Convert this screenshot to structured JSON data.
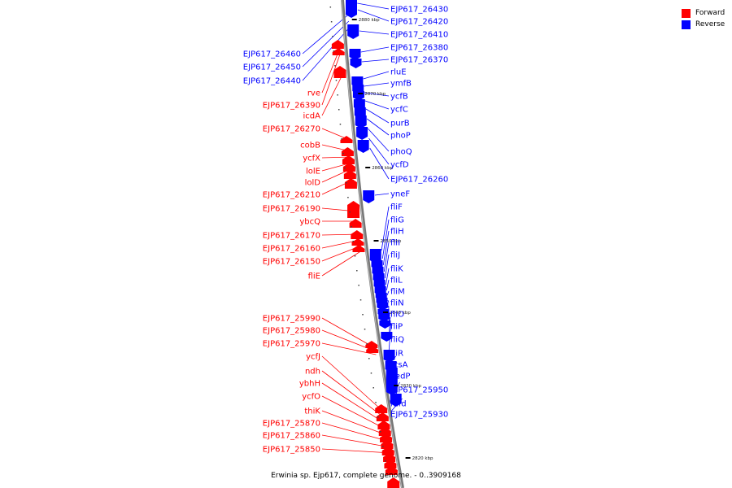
{
  "caption": "Erwinia sp. Ejp617, complete genome. - 0..3909168",
  "colors": {
    "forward": "#ff0000",
    "reverse": "#0000ff"
  },
  "legend": [
    {
      "label": "Forward",
      "color": "#ff0000"
    },
    {
      "label": "Reverse",
      "color": "#0000ff"
    }
  ],
  "ticks": [
    "2880 kbp",
    "2870 kbp",
    "2860 kbp",
    "2850 kbp",
    "2840 kbp",
    "2830 kbp",
    "2820 kbp"
  ],
  "reverse_genes": [
    "EJP617_26430",
    "EJP617_26420",
    "EJP617_26410",
    "EJP617_26380",
    "EJP617_26370",
    "rluE",
    "ymfB",
    "ycfB",
    "ycfC",
    "purB",
    "phoP",
    "phoQ",
    "ycfD",
    "EJP617_26260",
    "yneF",
    "fliF",
    "fliG",
    "fliH",
    "fliI",
    "fliJ",
    "fliK",
    "fliL",
    "fliM",
    "fliN",
    "fliO",
    "fliP",
    "fliQ",
    "fliR",
    "rcsA",
    "yedP",
    "EJP617_25950",
    "mfd",
    "EJP617_25930"
  ],
  "reverse_left_genes": [
    "EJP617_26460",
    "EJP617_26450",
    "EJP617_26440"
  ],
  "forward_genes": [
    "rve",
    "EJP617_26390",
    "icdA",
    "EJP617_26270",
    "cobB",
    "ycfX",
    "lolE",
    "lolD",
    "EJP617_26210",
    "EJP617_26190",
    "ybcQ",
    "EJP617_26170",
    "EJP617_26160",
    "EJP617_26150",
    "fliE",
    "EJP617_25990",
    "EJP617_25980",
    "EJP617_25970",
    "ycfJ",
    "ndh",
    "ybhH",
    "ycfO",
    "thiK",
    "EJP617_25870",
    "EJP617_25860",
    "EJP617_25850"
  ]
}
